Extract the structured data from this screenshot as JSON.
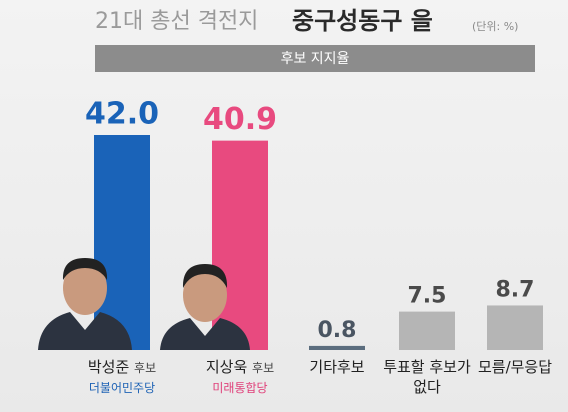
{
  "chart_data": {
    "type": "bar",
    "title_prefix": "21대 총선 격전지",
    "title": "중구성동구 을",
    "unit_note": "(단위: %)",
    "subtitle": "후보 지지율",
    "categories": [
      "박성준",
      "지상욱",
      "기타후보",
      "투표할 후보가 없다",
      "모름/무응답"
    ],
    "category_suffix": [
      "후보",
      "후보",
      null,
      null,
      null
    ],
    "sublabels": [
      "더불어민주당",
      "미래통합당",
      null,
      null,
      null
    ],
    "sublabel_colors": [
      "#1f63b5",
      "#e0407a",
      null,
      null,
      null
    ],
    "values": [
      42.0,
      40.9,
      0.8,
      7.5,
      8.7
    ],
    "value_labels": [
      "42.0",
      "40.9",
      "0.8",
      "7.5",
      "8.7"
    ],
    "colors": [
      "#1a63b8",
      "#e84a7f",
      "#5b6d7e",
      "#b5b5b5",
      "#b5b5b5"
    ],
    "label_colors": [
      "#1a63b8",
      "#e84a7f",
      "#4a5562",
      "#4a4a4a",
      "#4a4a4a"
    ],
    "ylim": [
      0,
      42
    ]
  }
}
